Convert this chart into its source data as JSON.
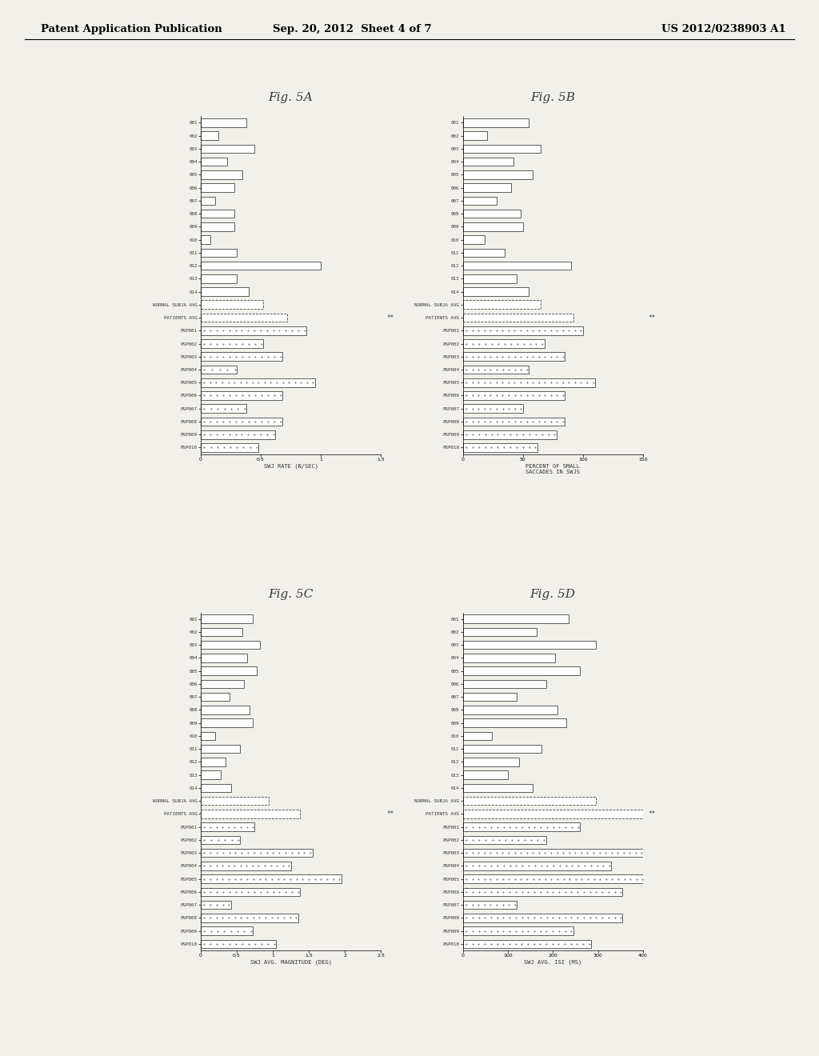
{
  "header_left": "Patent Application Publication",
  "header_center": "Sep. 20, 2012  Sheet 4 of 7",
  "header_right": "US 2012/0238903 A1",
  "fig5A": {
    "title": "Fig. 5A",
    "xlabel": "SWJ RATE (N/SEC)",
    "xlim": [
      0,
      1.5
    ],
    "xticks": [
      0,
      0.5,
      1,
      1.5
    ],
    "xtick_labels": [
      "0",
      "0.5",
      "1",
      "1.5"
    ],
    "labels": [
      "001",
      "002",
      "003",
      "004",
      "005",
      "006",
      "007",
      "008",
      "009",
      "010",
      "011",
      "012",
      "013",
      "014",
      "NORMAL SUBJA AVG",
      "PATIENTS AVG",
      "PSP001",
      "PSP002",
      "PSP003",
      "PSP004",
      "PSP005",
      "PSP006",
      "PSP007",
      "PSP008",
      "PSP009",
      "PSP010"
    ],
    "values": [
      0.38,
      0.15,
      0.45,
      0.22,
      0.35,
      0.28,
      0.12,
      0.28,
      0.28,
      0.08,
      0.3,
      1.0,
      0.3,
      0.4,
      0.52,
      0.72,
      0.88,
      0.52,
      0.68,
      0.3,
      0.95,
      0.68,
      0.38,
      0.68,
      0.62,
      0.48
    ],
    "style": [
      "solid",
      "solid",
      "solid",
      "solid",
      "solid",
      "solid",
      "solid",
      "solid",
      "solid",
      "solid",
      "solid",
      "solid",
      "solid",
      "solid",
      "dashed",
      "dashed",
      "dotted",
      "dotted",
      "dotted",
      "dotted",
      "dotted",
      "dotted",
      "dotted",
      "dotted",
      "dotted",
      "dotted"
    ],
    "sig_marker_row": 15,
    "sig_marker": "**"
  },
  "fig5B": {
    "title": "Fig. 5B",
    "xlabel": "PERCENT OF SMALL\nSACCADES IN SWJS",
    "xlim": [
      0,
      150
    ],
    "xticks": [
      0,
      50,
      100,
      150
    ],
    "xtick_labels": [
      "0",
      "50",
      "100",
      "150"
    ],
    "labels": [
      "001",
      "002",
      "003",
      "004",
      "005",
      "006",
      "007",
      "008",
      "009",
      "010",
      "011",
      "012",
      "013",
      "014",
      "NORMAL SUBJA AVG",
      "PATIENTS AVG",
      "PSP001",
      "PSP002",
      "PSP003",
      "PSP004",
      "PSP005",
      "PSP006",
      "PSP007",
      "PSP008",
      "PSP009",
      "PSP010"
    ],
    "values": [
      55,
      20,
      65,
      42,
      58,
      40,
      28,
      48,
      50,
      18,
      35,
      90,
      45,
      55,
      65,
      92,
      100,
      68,
      85,
      55,
      110,
      85,
      50,
      85,
      78,
      62
    ],
    "style": [
      "solid",
      "solid",
      "solid",
      "solid",
      "solid",
      "solid",
      "solid",
      "solid",
      "solid",
      "solid",
      "solid",
      "solid",
      "solid",
      "solid",
      "dashed",
      "dashed",
      "dotted",
      "dotted",
      "dotted",
      "dotted",
      "dotted",
      "dotted",
      "dotted",
      "dotted",
      "dotted",
      "dotted"
    ],
    "sig_marker_row": 15,
    "sig_marker": "**"
  },
  "fig5C": {
    "title": "Fig. 5C",
    "xlabel": "SWJ AVG. MAGNITUDE (DEG)",
    "xlim": [
      0,
      2.5
    ],
    "xticks": [
      0,
      0.5,
      1,
      1.5,
      2,
      2.5
    ],
    "xtick_labels": [
      "0",
      "0.5",
      "1",
      "1.5",
      "2",
      "2.5"
    ],
    "labels": [
      "001",
      "002",
      "003",
      "004",
      "005",
      "006",
      "007",
      "008",
      "009",
      "010",
      "011",
      "012",
      "013",
      "014",
      "NORMAL SUBJA AVG",
      "PATIENTS AVG",
      "PSP001",
      "PSP002",
      "PSP003",
      "PSP004",
      "PSP005",
      "PSP006",
      "PSP007",
      "PSP008",
      "PSP009",
      "PSP010"
    ],
    "values": [
      0.72,
      0.58,
      0.82,
      0.65,
      0.78,
      0.6,
      0.4,
      0.68,
      0.72,
      0.2,
      0.55,
      0.35,
      0.28,
      0.42,
      0.95,
      1.38,
      0.75,
      0.55,
      1.55,
      1.25,
      1.95,
      1.38,
      0.42,
      1.35,
      0.72,
      1.05
    ],
    "style": [
      "solid",
      "solid",
      "solid",
      "solid",
      "solid",
      "solid",
      "solid",
      "solid",
      "solid",
      "solid",
      "solid",
      "solid",
      "solid",
      "solid",
      "dashed",
      "dashed",
      "dotted",
      "dotted",
      "dotted",
      "dotted",
      "dotted",
      "dotted",
      "dotted",
      "dotted",
      "dotted",
      "dotted"
    ],
    "sig_marker_row": 15,
    "sig_marker": "**"
  },
  "fig5D": {
    "title": "Fig. 5D",
    "xlabel": "SWJ AVG. ISI (MS)",
    "xlim": [
      0,
      400
    ],
    "xticks": [
      0,
      100,
      200,
      300,
      400
    ],
    "xtick_labels": [
      "0",
      "100",
      "200",
      "300",
      "400"
    ],
    "labels": [
      "001",
      "002",
      "003",
      "004",
      "005",
      "006",
      "007",
      "008",
      "009",
      "010",
      "011",
      "012",
      "013",
      "014",
      "NORMAL SUBJA AVG",
      "PATIENTS AVG",
      "PSP001",
      "PSP002",
      "PSP003",
      "PSP004",
      "PSP005",
      "PSP006",
      "PSP007",
      "PSP008",
      "PSP009",
      "PSP010"
    ],
    "values": [
      235,
      165,
      295,
      205,
      260,
      185,
      120,
      210,
      230,
      65,
      175,
      125,
      100,
      155,
      295,
      415,
      260,
      185,
      415,
      330,
      565,
      355,
      120,
      355,
      245,
      285
    ],
    "style": [
      "solid",
      "solid",
      "solid",
      "solid",
      "solid",
      "solid",
      "solid",
      "solid",
      "solid",
      "solid",
      "solid",
      "solid",
      "solid",
      "solid",
      "dashed",
      "dashed",
      "dotted",
      "dotted",
      "dotted",
      "dotted",
      "dotted",
      "dotted",
      "dotted",
      "dotted",
      "dotted",
      "dotted"
    ],
    "sig_marker_row": 15,
    "sig_marker": "**"
  },
  "bg_color": "#f2f0eb",
  "bar_edge_color": "#555555",
  "text_color": "#333333"
}
